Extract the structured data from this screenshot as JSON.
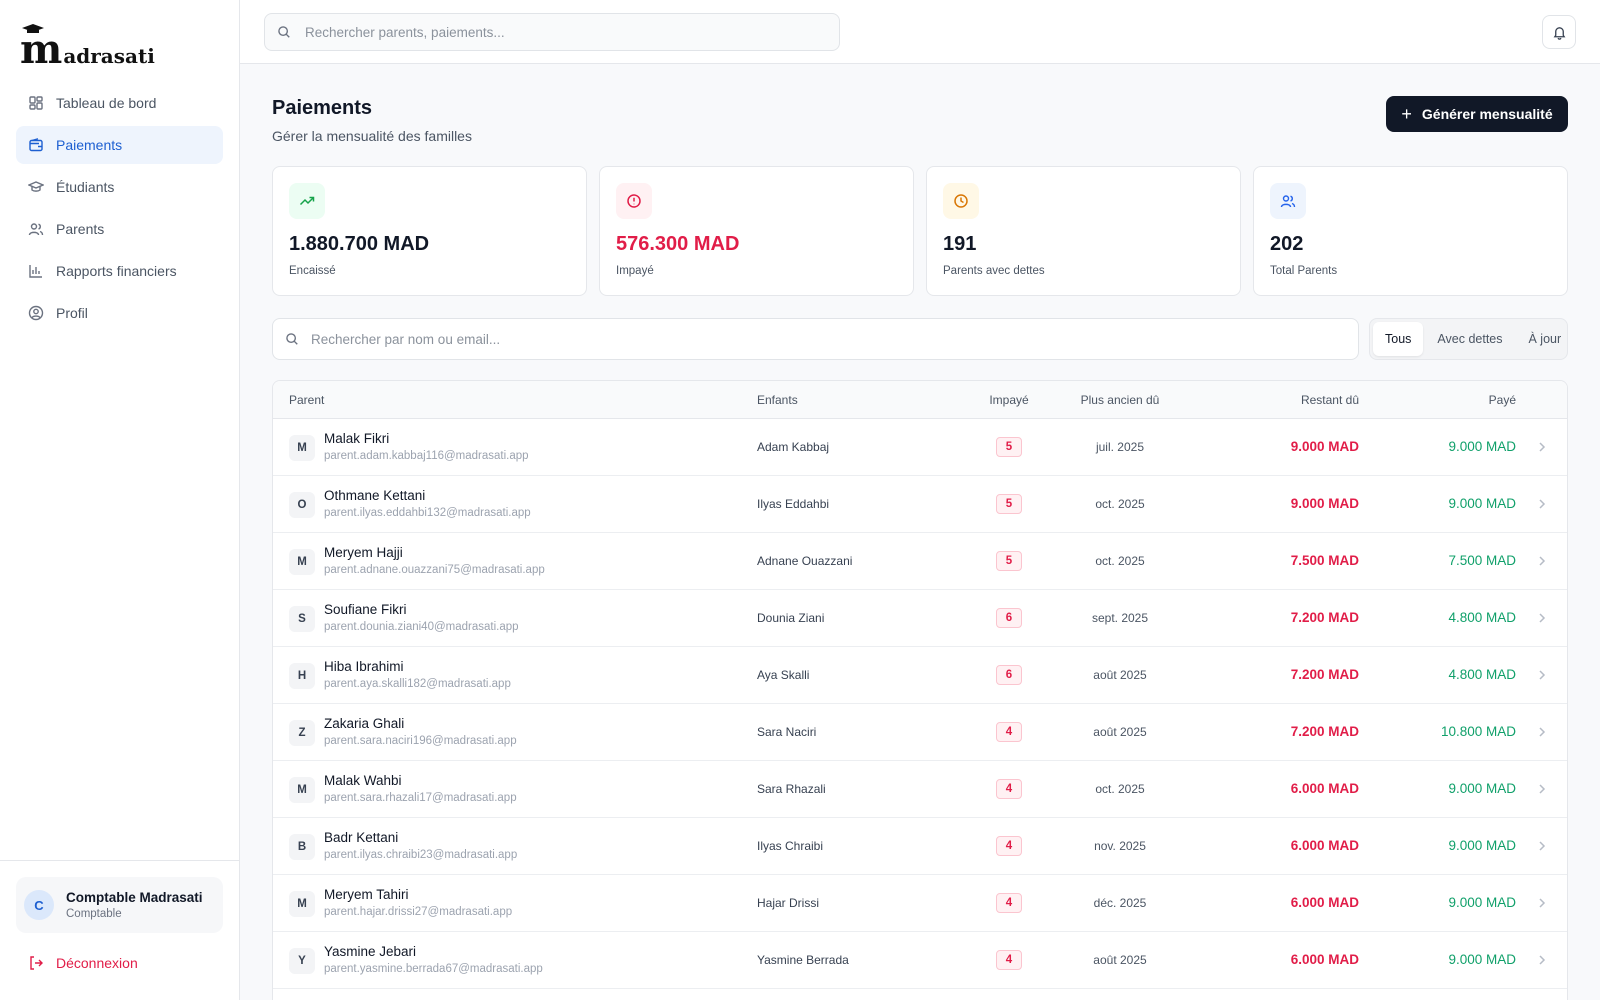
{
  "brand": {
    "logo_mark": "m",
    "logo_text": "adrasati"
  },
  "sidebar": {
    "items": [
      {
        "label": "Tableau de bord",
        "icon": "dashboard-icon"
      },
      {
        "label": "Paiements",
        "icon": "wallet-icon",
        "active": true
      },
      {
        "label": "Étudiants",
        "icon": "graduation-cap-icon"
      },
      {
        "label": "Parents",
        "icon": "users-icon"
      },
      {
        "label": "Rapports financiers",
        "icon": "bar-chart-icon"
      },
      {
        "label": "Profil",
        "icon": "user-circle-icon"
      }
    ],
    "user": {
      "initial": "C",
      "name": "Comptable Madrasati",
      "role": "Comptable"
    },
    "logout_label": "Déconnexion"
  },
  "topbar": {
    "search_placeholder": "Rechercher parents, paiements..."
  },
  "page": {
    "title": "Paiements",
    "subtitle": "Gérer la mensualité des familles",
    "generate_label": "Générer mensualité"
  },
  "stats": [
    {
      "value": "1.880.700 MAD",
      "label": "Encaissé",
      "icon": "trending-up-icon",
      "color": "#16a34a",
      "bg": "#ecfdf3"
    },
    {
      "value": "576.300 MAD",
      "label": "Impayé",
      "icon": "alert-circle-icon",
      "color": "#e11d48",
      "bg": "#fff1f3"
    },
    {
      "value": "191",
      "label": "Parents avec dettes",
      "icon": "clock-icon",
      "color": "#d97706",
      "bg": "#fff8e6"
    },
    {
      "value": "202",
      "label": "Total Parents",
      "icon": "users-icon",
      "color": "#2563eb",
      "bg": "#eef4fd"
    }
  ],
  "list": {
    "search_placeholder": "Rechercher par nom ou email...",
    "filters": [
      "Tous",
      "Avec dettes",
      "À jour"
    ],
    "active_filter": "Tous"
  },
  "table": {
    "headers": {
      "parent": "Parent",
      "children": "Enfants",
      "unpaid": "Impayé",
      "oldest_due": "Plus ancien dû",
      "remaining": "Restant dû",
      "paid": "Payé"
    },
    "rows": [
      {
        "initial": "M",
        "name": "Malak Fikri",
        "email": "parent.adam.kabbaj116@madrasati.app",
        "child": "Adam Kabbaj",
        "unpaid": "5",
        "oldest": "juil. 2025",
        "remaining": "9.000 MAD",
        "paid": "9.000 MAD"
      },
      {
        "initial": "O",
        "name": "Othmane Kettani",
        "email": "parent.ilyas.eddahbi132@madrasati.app",
        "child": "Ilyas Eddahbi",
        "unpaid": "5",
        "oldest": "oct. 2025",
        "remaining": "9.000 MAD",
        "paid": "9.000 MAD"
      },
      {
        "initial": "M",
        "name": "Meryem Hajji",
        "email": "parent.adnane.ouazzani75@madrasati.app",
        "child": "Adnane Ouazzani",
        "unpaid": "5",
        "oldest": "oct. 2025",
        "remaining": "7.500 MAD",
        "paid": "7.500 MAD"
      },
      {
        "initial": "S",
        "name": "Soufiane Fikri",
        "email": "parent.dounia.ziani40@madrasati.app",
        "child": "Dounia Ziani",
        "unpaid": "6",
        "oldest": "sept. 2025",
        "remaining": "7.200 MAD",
        "paid": "4.800 MAD"
      },
      {
        "initial": "H",
        "name": "Hiba Ibrahimi",
        "email": "parent.aya.skalli182@madrasati.app",
        "child": "Aya Skalli",
        "unpaid": "6",
        "oldest": "août 2025",
        "remaining": "7.200 MAD",
        "paid": "4.800 MAD"
      },
      {
        "initial": "Z",
        "name": "Zakaria Ghali",
        "email": "parent.sara.naciri196@madrasati.app",
        "child": "Sara Naciri",
        "unpaid": "4",
        "oldest": "août 2025",
        "remaining": "7.200 MAD",
        "paid": "10.800 MAD"
      },
      {
        "initial": "M",
        "name": "Malak Wahbi",
        "email": "parent.sara.rhazali17@madrasati.app",
        "child": "Sara Rhazali",
        "unpaid": "4",
        "oldest": "oct. 2025",
        "remaining": "6.000 MAD",
        "paid": "9.000 MAD"
      },
      {
        "initial": "B",
        "name": "Badr Kettani",
        "email": "parent.ilyas.chraibi23@madrasati.app",
        "child": "Ilyas Chraibi",
        "unpaid": "4",
        "oldest": "nov. 2025",
        "remaining": "6.000 MAD",
        "paid": "9.000 MAD"
      },
      {
        "initial": "M",
        "name": "Meryem Tahiri",
        "email": "parent.hajar.drissi27@madrasati.app",
        "child": "Hajar Drissi",
        "unpaid": "4",
        "oldest": "déc. 2025",
        "remaining": "6.000 MAD",
        "paid": "9.000 MAD"
      },
      {
        "initial": "Y",
        "name": "Yasmine Jebari",
        "email": "parent.yasmine.berrada67@madrasati.app",
        "child": "Yasmine Berrada",
        "unpaid": "4",
        "oldest": "août 2025",
        "remaining": "6.000 MAD",
        "paid": "9.000 MAD"
      }
    ]
  }
}
